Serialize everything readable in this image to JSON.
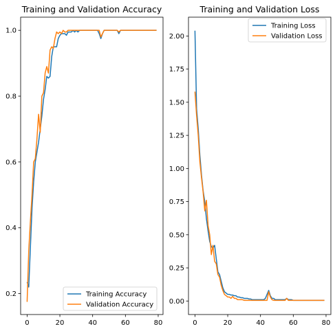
{
  "chart_data": [
    {
      "type": "line",
      "title": "Training and Validation Accuracy",
      "xlabel": "",
      "ylabel": "",
      "xlim": [
        -3.95,
        82.95
      ],
      "ylim": [
        0.1365,
        1.04
      ],
      "xticks": [
        0,
        20,
        40,
        60,
        80
      ],
      "yticks": [
        0.2,
        0.4,
        0.6,
        0.8,
        1.0
      ],
      "xtick_labels": [
        "0",
        "20",
        "40",
        "60",
        "80"
      ],
      "ytick_labels": [
        "0.2",
        "0.4",
        "0.6",
        "0.8",
        "1.0"
      ],
      "grid": false,
      "legend_position": "lower-right",
      "series": [
        {
          "name": "Training Accuracy",
          "color": "#1f77b4",
          "x": [
            0,
            1,
            2,
            3,
            4,
            5,
            6,
            7,
            8,
            9,
            10,
            11,
            12,
            13,
            14,
            15,
            16,
            17,
            18,
            19,
            20,
            21,
            22,
            23,
            24,
            25,
            26,
            27,
            28,
            29,
            30,
            31,
            32,
            33,
            34,
            35,
            36,
            37,
            38,
            39,
            40,
            41,
            42,
            43,
            44,
            45,
            46,
            47,
            48,
            49,
            50,
            51,
            52,
            53,
            54,
            55,
            56,
            57,
            58,
            59,
            60,
            61,
            62,
            63,
            64,
            65,
            66,
            67,
            68,
            69,
            70,
            71,
            72,
            73,
            74,
            75,
            76,
            77,
            78,
            79
          ],
          "y": [
            0.235,
            0.22,
            0.34,
            0.46,
            0.54,
            0.6,
            0.63,
            0.66,
            0.7,
            0.74,
            0.79,
            0.82,
            0.86,
            0.855,
            0.86,
            0.92,
            0.95,
            0.95,
            0.95,
            0.975,
            0.985,
            0.99,
            0.99,
            0.99,
            0.985,
            0.995,
            0.995,
            0.995,
            1.0,
            0.995,
            1.0,
            0.995,
            1.0,
            1.0,
            1.0,
            1.0,
            1.0,
            1.0,
            1.0,
            1.0,
            1.0,
            1.0,
            1.0,
            1.0,
            0.99,
            0.975,
            0.99,
            1.0,
            1.0,
            1.0,
            1.0,
            1.0,
            1.0,
            1.0,
            1.0,
            1.0,
            0.99,
            1.0,
            1.0,
            1.0,
            1.0,
            1.0,
            1.0,
            1.0,
            1.0,
            1.0,
            1.0,
            1.0,
            1.0,
            1.0,
            1.0,
            1.0,
            1.0,
            1.0,
            1.0,
            1.0,
            1.0,
            1.0,
            1.0,
            1.0
          ]
        },
        {
          "name": "Validation Accuracy",
          "color": "#ff7f0e",
          "x": [
            0,
            1,
            2,
            3,
            4,
            5,
            6,
            7,
            8,
            9,
            10,
            11,
            12,
            13,
            14,
            15,
            16,
            17,
            18,
            19,
            20,
            21,
            22,
            23,
            24,
            25,
            26,
            27,
            28,
            29,
            30,
            31,
            32,
            33,
            34,
            35,
            36,
            37,
            38,
            39,
            40,
            41,
            42,
            43,
            44,
            45,
            46,
            47,
            48,
            49,
            50,
            51,
            52,
            53,
            54,
            55,
            56,
            57,
            58,
            59,
            60,
            61,
            62,
            63,
            64,
            65,
            66,
            67,
            68,
            69,
            70,
            71,
            72,
            73,
            74,
            75,
            76,
            77,
            78,
            79
          ],
          "y": [
            0.175,
            0.33,
            0.42,
            0.5,
            0.6,
            0.61,
            0.67,
            0.745,
            0.69,
            0.8,
            0.81,
            0.87,
            0.89,
            0.87,
            0.94,
            0.95,
            0.945,
            0.975,
            0.995,
            0.99,
            0.995,
            0.99,
            1.0,
            0.995,
            0.995,
            1.0,
            1.0,
            1.0,
            1.0,
            1.0,
            1.0,
            1.0,
            1.0,
            1.0,
            1.0,
            1.0,
            1.0,
            1.0,
            1.0,
            1.0,
            1.0,
            1.0,
            1.0,
            1.0,
            1.0,
            0.98,
            0.99,
            1.0,
            1.0,
            1.0,
            1.0,
            1.0,
            1.0,
            1.0,
            1.0,
            1.0,
            0.995,
            1.0,
            1.0,
            1.0,
            1.0,
            1.0,
            1.0,
            1.0,
            1.0,
            1.0,
            1.0,
            1.0,
            1.0,
            1.0,
            1.0,
            1.0,
            1.0,
            1.0,
            1.0,
            1.0,
            1.0,
            1.0,
            1.0,
            1.0
          ]
        }
      ]
    },
    {
      "type": "line",
      "title": "Training and Validation Loss",
      "xlabel": "",
      "ylabel": "",
      "xlim": [
        -3.95,
        82.95
      ],
      "ylim": [
        -0.102,
        2.142
      ],
      "xticks": [
        0,
        20,
        40,
        60,
        80
      ],
      "yticks": [
        0.0,
        0.25,
        0.5,
        0.75,
        1.0,
        1.25,
        1.5,
        1.75,
        2.0
      ],
      "xtick_labels": [
        "0",
        "20",
        "40",
        "60",
        "80"
      ],
      "ytick_labels": [
        "0.00",
        "0.25",
        "0.50",
        "0.75",
        "1.00",
        "1.25",
        "1.50",
        "1.75",
        "2.00"
      ],
      "grid": false,
      "legend_position": "upper-right",
      "series": [
        {
          "name": "Training Loss",
          "color": "#1f77b4",
          "x": [
            0,
            1,
            2,
            3,
            4,
            5,
            6,
            7,
            8,
            9,
            10,
            11,
            12,
            13,
            14,
            15,
            16,
            17,
            18,
            19,
            20,
            21,
            22,
            23,
            24,
            25,
            26,
            27,
            28,
            29,
            30,
            31,
            32,
            33,
            34,
            35,
            36,
            37,
            38,
            39,
            40,
            41,
            42,
            43,
            44,
            45,
            46,
            47,
            48,
            49,
            50,
            51,
            52,
            53,
            54,
            55,
            56,
            57,
            58,
            59,
            60,
            61,
            62,
            63,
            64,
            65,
            66,
            67,
            68,
            69,
            70,
            71,
            72,
            73,
            74,
            75,
            76,
            77,
            78,
            79
          ],
          "y": [
            2.04,
            1.45,
            1.3,
            1.1,
            0.95,
            0.83,
            0.75,
            0.62,
            0.53,
            0.45,
            0.41,
            0.4,
            0.42,
            0.32,
            0.22,
            0.2,
            0.15,
            0.1,
            0.07,
            0.06,
            0.05,
            0.05,
            0.045,
            0.045,
            0.04,
            0.04,
            0.03,
            0.03,
            0.025,
            0.025,
            0.02,
            0.02,
            0.02,
            0.015,
            0.015,
            0.01,
            0.01,
            0.01,
            0.01,
            0.01,
            0.01,
            0.01,
            0.01,
            0.02,
            0.05,
            0.08,
            0.04,
            0.02,
            0.02,
            0.01,
            0.01,
            0.01,
            0.01,
            0.01,
            0.01,
            0.01,
            0.02,
            0.01,
            0.01,
            0.01,
            0.005,
            0.005,
            0.005,
            0.005,
            0.005,
            0.005,
            0.005,
            0.005,
            0.005,
            0.005,
            0.005,
            0.005,
            0.005,
            0.005,
            0.005,
            0.005,
            0.005,
            0.005,
            0.005,
            0.005
          ]
        },
        {
          "name": "Validation Loss",
          "color": "#ff7f0e",
          "x": [
            0,
            1,
            2,
            3,
            4,
            5,
            6,
            7,
            8,
            9,
            10,
            11,
            12,
            13,
            14,
            15,
            16,
            17,
            18,
            19,
            20,
            21,
            22,
            23,
            24,
            25,
            26,
            27,
            28,
            29,
            30,
            31,
            32,
            33,
            34,
            35,
            36,
            37,
            38,
            39,
            40,
            41,
            42,
            43,
            44,
            45,
            46,
            47,
            48,
            49,
            50,
            51,
            52,
            53,
            54,
            55,
            56,
            57,
            58,
            59,
            60,
            61,
            62,
            63,
            64,
            65,
            66,
            67,
            68,
            69,
            70,
            71,
            72,
            73,
            74,
            75,
            76,
            77,
            78,
            79
          ],
          "y": [
            1.58,
            1.4,
            1.25,
            1.05,
            0.93,
            0.82,
            0.68,
            0.76,
            0.57,
            0.5,
            0.35,
            0.42,
            0.3,
            0.28,
            0.2,
            0.18,
            0.12,
            0.08,
            0.05,
            0.04,
            0.03,
            0.03,
            0.02,
            0.035,
            0.02,
            0.02,
            0.01,
            0.01,
            0.01,
            0.01,
            0.005,
            0.005,
            0.005,
            0.005,
            0.005,
            0.005,
            0.005,
            0.005,
            0.005,
            0.005,
            0.005,
            0.005,
            0.005,
            0.005,
            0.005,
            0.07,
            0.03,
            0.01,
            0.005,
            0.005,
            0.005,
            0.005,
            0.005,
            0.005,
            0.005,
            0.005,
            0.02,
            0.005,
            0.005,
            0.005,
            0.005,
            0.005,
            0.005,
            0.005,
            0.005,
            0.005,
            0.005,
            0.005,
            0.005,
            0.005,
            0.005,
            0.005,
            0.005,
            0.005,
            0.005,
            0.005,
            0.005,
            0.005,
            0.005,
            0.005
          ]
        }
      ]
    }
  ]
}
